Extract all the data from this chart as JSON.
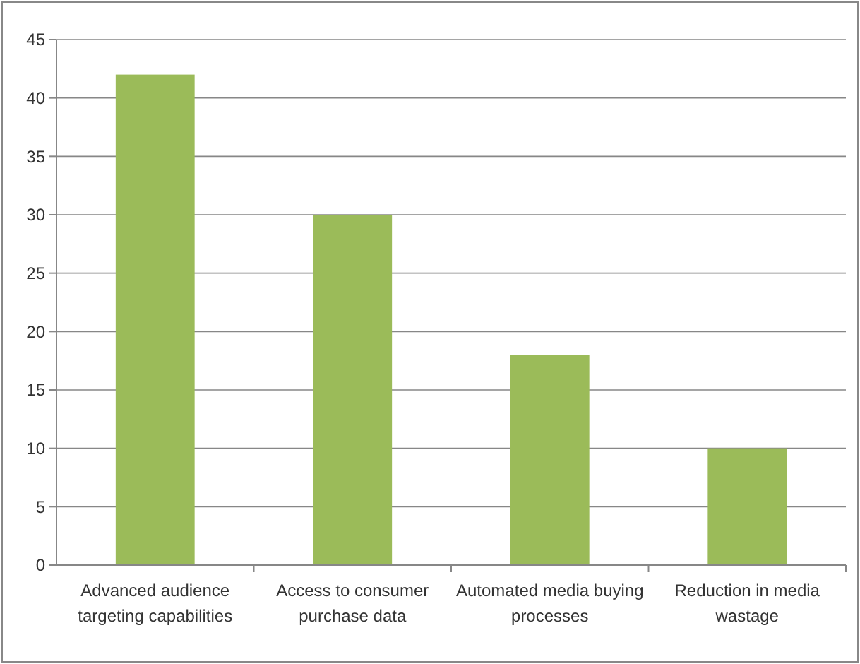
{
  "chart_data": {
    "type": "bar",
    "categories": [
      "Advanced audience targeting capabilities",
      "Access to consumer purchase data",
      "Automated media buying processes",
      "Reduction in media wastage"
    ],
    "values": [
      42,
      30,
      18,
      10
    ],
    "color": "#9bbb59",
    "ylim": [
      0,
      45
    ],
    "yticks": [
      0,
      5,
      10,
      15,
      20,
      25,
      30,
      35,
      40,
      45
    ],
    "grid": "y"
  }
}
